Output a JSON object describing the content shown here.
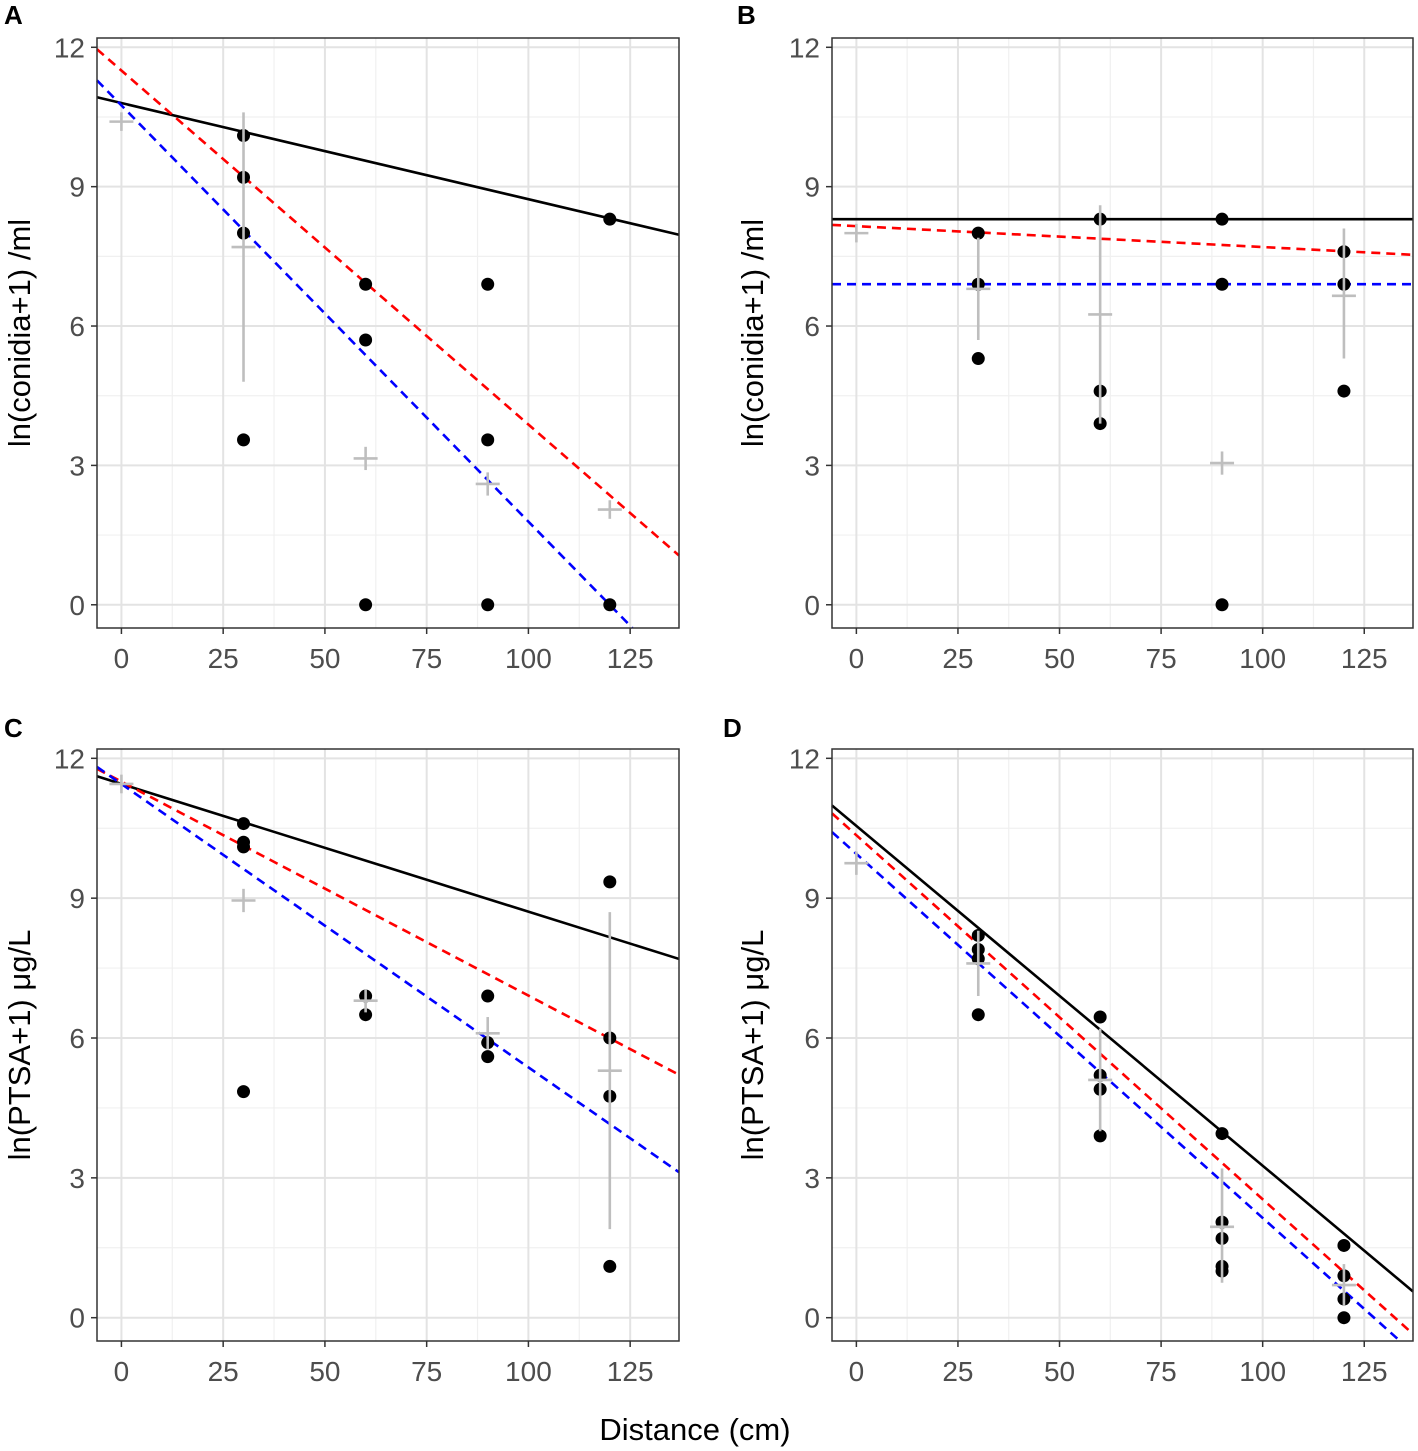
{
  "figure": {
    "xlabel": "Distance (cm)",
    "grey_color": "#bebebe",
    "point_color": "#000000"
  },
  "chart_data": [
    {
      "panel": "A",
      "type": "scatter",
      "ylabel": "ln(conidia+1) /ml",
      "xlim": [
        -6,
        137
      ],
      "ylim": [
        -0.5,
        12.2
      ],
      "xticks": [
        0,
        25,
        50,
        75,
        100,
        125
      ],
      "yticks": [
        0,
        3,
        6,
        9,
        12
      ],
      "points": [
        {
          "x": 30,
          "y": 10.1
        },
        {
          "x": 30,
          "y": 9.2
        },
        {
          "x": 30,
          "y": 8.0
        },
        {
          "x": 30,
          "y": 3.55
        },
        {
          "x": 60,
          "y": 6.9
        },
        {
          "x": 60,
          "y": 5.7
        },
        {
          "x": 60,
          "y": 0
        },
        {
          "x": 90,
          "y": 6.9
        },
        {
          "x": 90,
          "y": 3.55
        },
        {
          "x": 90,
          "y": 0
        },
        {
          "x": 120,
          "y": 8.3
        },
        {
          "x": 120,
          "y": 0
        }
      ],
      "means": [
        {
          "x": 0,
          "y": 10.4,
          "low": 10.2,
          "high": 10.6
        },
        {
          "x": 30,
          "y": 7.7,
          "low": 4.8,
          "high": 10.6
        },
        {
          "x": 60,
          "y": 3.15,
          "low": 2.9,
          "high": 3.4
        },
        {
          "x": 90,
          "y": 2.6,
          "low": 2.35,
          "high": 2.85
        },
        {
          "x": 120,
          "y": 2.05,
          "low": 1.85,
          "high": 2.25
        }
      ],
      "lines": [
        {
          "name": "black-solid",
          "color": "#000000",
          "dash": "",
          "intercept": 10.8,
          "slope": -0.0207
        },
        {
          "name": "red-dashed",
          "color": "#ff0000",
          "dash": "9,6",
          "intercept": 11.5,
          "slope": -0.0762
        },
        {
          "name": "blue-dashed",
          "color": "#0000ff",
          "dash": "9,6",
          "intercept": 10.75,
          "slope": -0.0896
        }
      ]
    },
    {
      "panel": "B",
      "type": "scatter",
      "ylabel": "ln(conidia+1) /ml",
      "xlim": [
        -6,
        137
      ],
      "ylim": [
        -0.5,
        12.2
      ],
      "xticks": [
        0,
        25,
        50,
        75,
        100,
        125
      ],
      "yticks": [
        0,
        3,
        6,
        9,
        12
      ],
      "points": [
        {
          "x": 30,
          "y": 8.0
        },
        {
          "x": 30,
          "y": 6.9
        },
        {
          "x": 30,
          "y": 5.3
        },
        {
          "x": 60,
          "y": 8.3
        },
        {
          "x": 60,
          "y": 4.6
        },
        {
          "x": 60,
          "y": 3.9
        },
        {
          "x": 90,
          "y": 8.3
        },
        {
          "x": 90,
          "y": 6.9
        },
        {
          "x": 90,
          "y": 0
        },
        {
          "x": 120,
          "y": 7.6
        },
        {
          "x": 120,
          "y": 6.9
        },
        {
          "x": 120,
          "y": 4.6
        }
      ],
      "means": [
        {
          "x": 0,
          "y": 8.0,
          "low": 7.8,
          "high": 8.2
        },
        {
          "x": 30,
          "y": 6.8,
          "low": 5.7,
          "high": 7.9
        },
        {
          "x": 60,
          "y": 6.25,
          "low": 3.9,
          "high": 8.6
        },
        {
          "x": 90,
          "y": 3.05,
          "low": 2.8,
          "high": 3.3
        },
        {
          "x": 120,
          "y": 6.65,
          "low": 5.3,
          "high": 8.1
        }
      ],
      "lines": [
        {
          "name": "black-solid",
          "color": "#000000",
          "dash": "",
          "intercept": 8.3,
          "slope": 0
        },
        {
          "name": "red-dashed",
          "color": "#ff0000",
          "dash": "9,6",
          "intercept": 8.15,
          "slope": -0.0045
        },
        {
          "name": "blue-dashed",
          "color": "#0000ff",
          "dash": "9,6",
          "intercept": 6.9,
          "slope": 0
        }
      ]
    },
    {
      "panel": "C",
      "type": "scatter",
      "ylabel": "ln(PTSA+1) μg/L",
      "xlim": [
        -6,
        137
      ],
      "ylim": [
        -0.5,
        12.2
      ],
      "xticks": [
        0,
        25,
        50,
        75,
        100,
        125
      ],
      "yticks": [
        0,
        3,
        6,
        9,
        12
      ],
      "points": [
        {
          "x": 30,
          "y": 10.6
        },
        {
          "x": 30,
          "y": 10.2
        },
        {
          "x": 30,
          "y": 10.1
        },
        {
          "x": 30,
          "y": 4.85
        },
        {
          "x": 60,
          "y": 6.9
        },
        {
          "x": 60,
          "y": 6.5
        },
        {
          "x": 90,
          "y": 6.9
        },
        {
          "x": 90,
          "y": 5.9
        },
        {
          "x": 90,
          "y": 5.6
        },
        {
          "x": 120,
          "y": 9.35
        },
        {
          "x": 120,
          "y": 6.0
        },
        {
          "x": 120,
          "y": 4.75
        },
        {
          "x": 120,
          "y": 1.1
        }
      ],
      "means": [
        {
          "x": 0,
          "y": 11.45,
          "low": 11.25,
          "high": 11.65
        },
        {
          "x": 30,
          "y": 8.95,
          "low": 8.7,
          "high": 9.2
        },
        {
          "x": 60,
          "y": 6.8,
          "low": 6.55,
          "high": 7.05
        },
        {
          "x": 90,
          "y": 6.1,
          "low": 5.75,
          "high": 6.45
        },
        {
          "x": 120,
          "y": 5.3,
          "low": 1.9,
          "high": 8.7
        }
      ],
      "lines": [
        {
          "name": "black-solid",
          "color": "#000000",
          "dash": "",
          "intercept": 11.45,
          "slope": -0.0274
        },
        {
          "name": "red-dashed",
          "color": "#ff0000",
          "dash": "9,6",
          "intercept": 11.5,
          "slope": -0.0459
        },
        {
          "name": "blue-dashed",
          "color": "#0000ff",
          "dash": "9,6",
          "intercept": 11.45,
          "slope": -0.0608
        }
      ]
    },
    {
      "panel": "D",
      "type": "scatter",
      "ylabel": "ln(PTSA+1) μg/L",
      "xlim": [
        -6,
        137
      ],
      "ylim": [
        -0.5,
        12.2
      ],
      "xticks": [
        0,
        25,
        50,
        75,
        100,
        125
      ],
      "yticks": [
        0,
        3,
        6,
        9,
        12
      ],
      "points": [
        {
          "x": 30,
          "y": 8.2
        },
        {
          "x": 30,
          "y": 7.9
        },
        {
          "x": 30,
          "y": 7.7
        },
        {
          "x": 30,
          "y": 6.5
        },
        {
          "x": 60,
          "y": 6.45
        },
        {
          "x": 60,
          "y": 5.2
        },
        {
          "x": 60,
          "y": 4.9
        },
        {
          "x": 60,
          "y": 3.9
        },
        {
          "x": 90,
          "y": 3.95
        },
        {
          "x": 90,
          "y": 2.05
        },
        {
          "x": 90,
          "y": 1.7
        },
        {
          "x": 90,
          "y": 1.1
        },
        {
          "x": 90,
          "y": 1.0
        },
        {
          "x": 120,
          "y": 1.55
        },
        {
          "x": 120,
          "y": 0.9
        },
        {
          "x": 120,
          "y": 0.4
        },
        {
          "x": 120,
          "y": 0.0
        }
      ],
      "means": [
        {
          "x": 0,
          "y": 9.75,
          "low": 9.5,
          "high": 10.0
        },
        {
          "x": 30,
          "y": 7.6,
          "low": 6.9,
          "high": 8.3
        },
        {
          "x": 60,
          "y": 5.1,
          "low": 4.0,
          "high": 6.2
        },
        {
          "x": 90,
          "y": 1.95,
          "low": 0.75,
          "high": 3.2
        },
        {
          "x": 120,
          "y": 0.7,
          "low": 0.25,
          "high": 1.15
        }
      ],
      "lines": [
        {
          "name": "black-solid",
          "color": "#000000",
          "dash": "",
          "intercept": 10.55,
          "slope": -0.0729
        },
        {
          "name": "red-dashed",
          "color": "#ff0000",
          "dash": "9,6",
          "intercept": 10.35,
          "slope": -0.0781
        },
        {
          "name": "blue-dashed",
          "color": "#0000ff",
          "dash": "9,6",
          "intercept": 9.95,
          "slope": -0.0781
        }
      ]
    }
  ]
}
